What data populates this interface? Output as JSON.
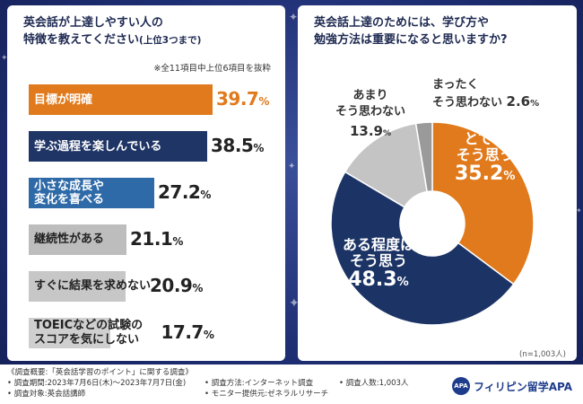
{
  "left_chart": {
    "title_line1": "英会話が上達しやすい人の",
    "title_line2": "特徴を教えてください",
    "title_suffix": "(上位3つまで)",
    "note": "※全11項目中上位6項目を抜粋",
    "colors": [
      "#e07a1c",
      "#1f3566",
      "#2e6aa8",
      "#bdbdbd",
      "#c7c7c7",
      "#cfcfcf"
    ]
  },
  "right_chart": {
    "title_line1": "英会話上達のためには、学び方や",
    "title_line2": "勉強方法は重要になると思いますか?",
    "sample_size": "(n=1,003人)"
  },
  "chart_data": [
    {
      "type": "bar",
      "orientation": "horizontal",
      "title": "英会話が上達しやすい人の特徴を教えてください(上位3つまで)",
      "categories": [
        "目標が明確",
        "学ぶ過程を楽しんでいる",
        "小さな成長や変化を喜べる",
        "継続性がある",
        "すぐに結果を求めない",
        "TOEICなどの試験のスコアを気にしない"
      ],
      "label_lines": [
        [
          "目標が明確"
        ],
        [
          "学ぶ過程を楽しんでいる"
        ],
        [
          "小さな成長や",
          "変化を喜べる"
        ],
        [
          "継続性がある"
        ],
        [
          "すぐに結果を求めない"
        ],
        [
          "TOEICなどの試験の",
          "スコアを気にしない"
        ]
      ],
      "values": [
        39.7,
        38.5,
        27.2,
        21.1,
        20.9,
        17.7
      ],
      "value_labels": [
        "39.7",
        "38.5",
        "27.2",
        "21.1",
        "20.9",
        "17.7"
      ],
      "unit": "%"
    },
    {
      "type": "pie",
      "title": "英会話上達のためには、学び方や勉強方法は重要になると思いますか?",
      "categories": [
        "とてもそう思う",
        "ある程度はそう思う",
        "あまりそう思わない",
        "まったくそう思わない"
      ],
      "label_lines": [
        [
          "とても",
          "そう思う"
        ],
        [
          "ある程度は",
          "そう思う"
        ],
        [
          "あまり",
          "そう思わない"
        ],
        [
          "まったく",
          "そう思わない"
        ]
      ],
      "values": [
        35.2,
        48.3,
        13.9,
        2.6
      ],
      "value_labels": [
        "35.2",
        "48.3",
        "13.9",
        "2.6"
      ],
      "unit": "%",
      "colors": [
        "#e07a1c",
        "#1c3465",
        "#c4c4c4",
        "#9a9a9a"
      ]
    }
  ],
  "footer": {
    "line1": "《調査概要:「英会話学習のポイント」に関する調査》",
    "period": "• 調査期間:2023年7月6日(木)〜2023年7月7日(金)",
    "target": "• 調査対象:英会話講師",
    "method": "• 調査方法:インターネット調査",
    "monitor": "• モニター提供元:ゼネラルリサーチ",
    "people": "• 調査人数:1,003人",
    "brand_logo": "APA",
    "brand_name": "フィリピン留学APA"
  }
}
